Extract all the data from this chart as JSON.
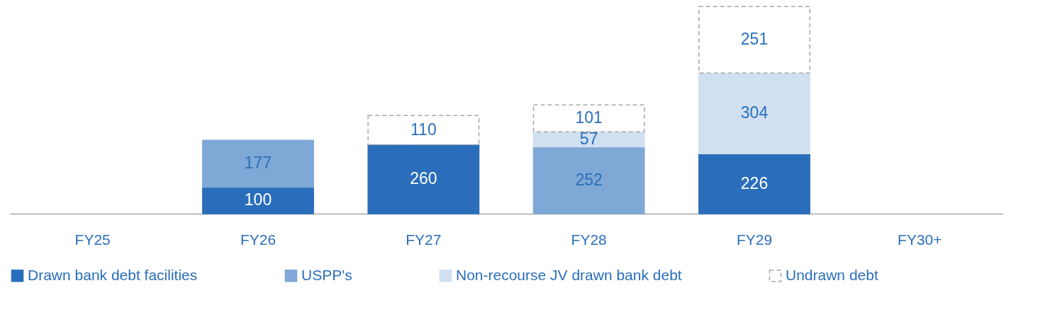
{
  "chart_data": {
    "type": "bar",
    "stacked": true,
    "categories": [
      "FY25",
      "FY26",
      "FY27",
      "FY28",
      "FY29",
      "FY30+"
    ],
    "series": [
      {
        "name": "Drawn bank debt facilities",
        "color": "#2a6ebb",
        "values": [
          null,
          100,
          260,
          null,
          226,
          null
        ]
      },
      {
        "name": "USPP's",
        "color": "#7fa8d6",
        "values": [
          null,
          177,
          null,
          252,
          null,
          null
        ]
      },
      {
        "name": "Non-recourse JV drawn bank debt",
        "color": "#d0e0f0",
        "values": [
          null,
          null,
          null,
          57,
          304,
          null
        ]
      },
      {
        "name": "Undrawn debt",
        "color": "#ffffff",
        "line_style": "dashed",
        "values": [
          null,
          null,
          110,
          101,
          251,
          null
        ]
      }
    ],
    "ylim": [
      0,
      800
    ],
    "tick_labels": "x",
    "data_labels": true,
    "legend": "bottom"
  }
}
